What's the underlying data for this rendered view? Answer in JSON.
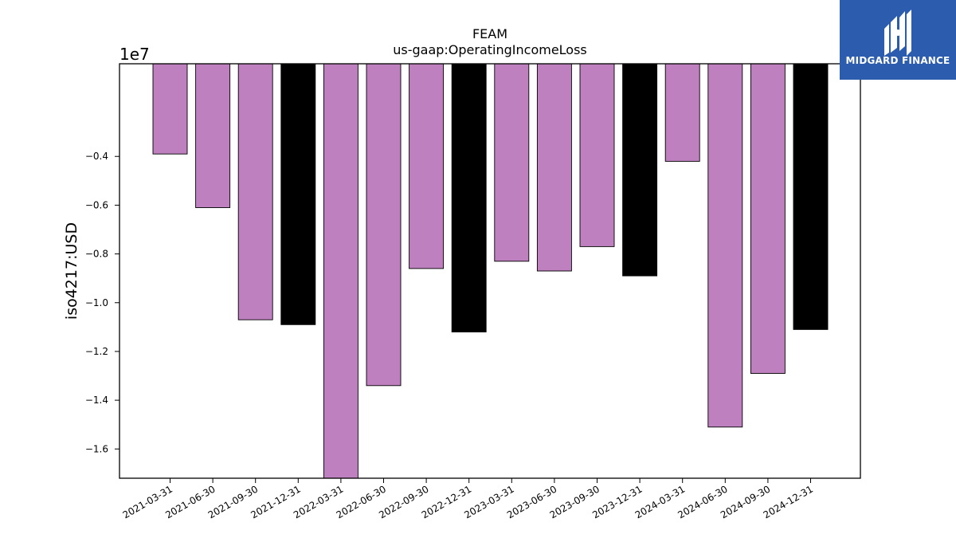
{
  "logo": {
    "text": "MIDGARD FINANCE",
    "icon": "midgard-mark-icon",
    "bg_color": "#2b5cad",
    "fg_color": "#ffffff"
  },
  "chart_data": {
    "type": "bar",
    "title": "FEAM",
    "subtitle": "us-gaap:OperatingIncomeLoss",
    "xlabel": "",
    "ylabel": "iso4217:USD",
    "y_multiplier_label": "1e7",
    "y_scale": 10000000,
    "ylim": [
      -17200000,
      -200000
    ],
    "yticks": [
      -4000000,
      -6000000,
      -8000000,
      -10000000,
      -12000000,
      -14000000,
      -16000000
    ],
    "ytick_labels": [
      "−0.4",
      "−0.6",
      "−0.8",
      "−1.0",
      "−1.2",
      "−1.4",
      "−1.6"
    ],
    "grid": false,
    "legend": "none",
    "colors": {
      "quarter": "#bf80bf",
      "year_end": "#000000",
      "edge": "#000000"
    },
    "categories": [
      "2021-03-31",
      "2021-06-30",
      "2021-09-30",
      "2021-12-31",
      "2022-03-31",
      "2022-06-30",
      "2022-09-30",
      "2022-12-31",
      "2023-03-31",
      "2023-06-30",
      "2023-09-30",
      "2023-12-31",
      "2024-03-31",
      "2024-06-30",
      "2024-09-30",
      "2024-12-31"
    ],
    "values": [
      -3900000,
      -6100000,
      -10700000,
      -10900000,
      -17200000,
      -13400000,
      -8600000,
      -11200000,
      -8300000,
      -8700000,
      -7700000,
      -8900000,
      -4200000,
      -15100000,
      -12900000,
      -11100000
    ],
    "bar_kind": [
      "quarter",
      "quarter",
      "quarter",
      "year_end",
      "quarter",
      "quarter",
      "quarter",
      "year_end",
      "quarter",
      "quarter",
      "quarter",
      "year_end",
      "quarter",
      "quarter",
      "quarter",
      "year_end"
    ]
  }
}
